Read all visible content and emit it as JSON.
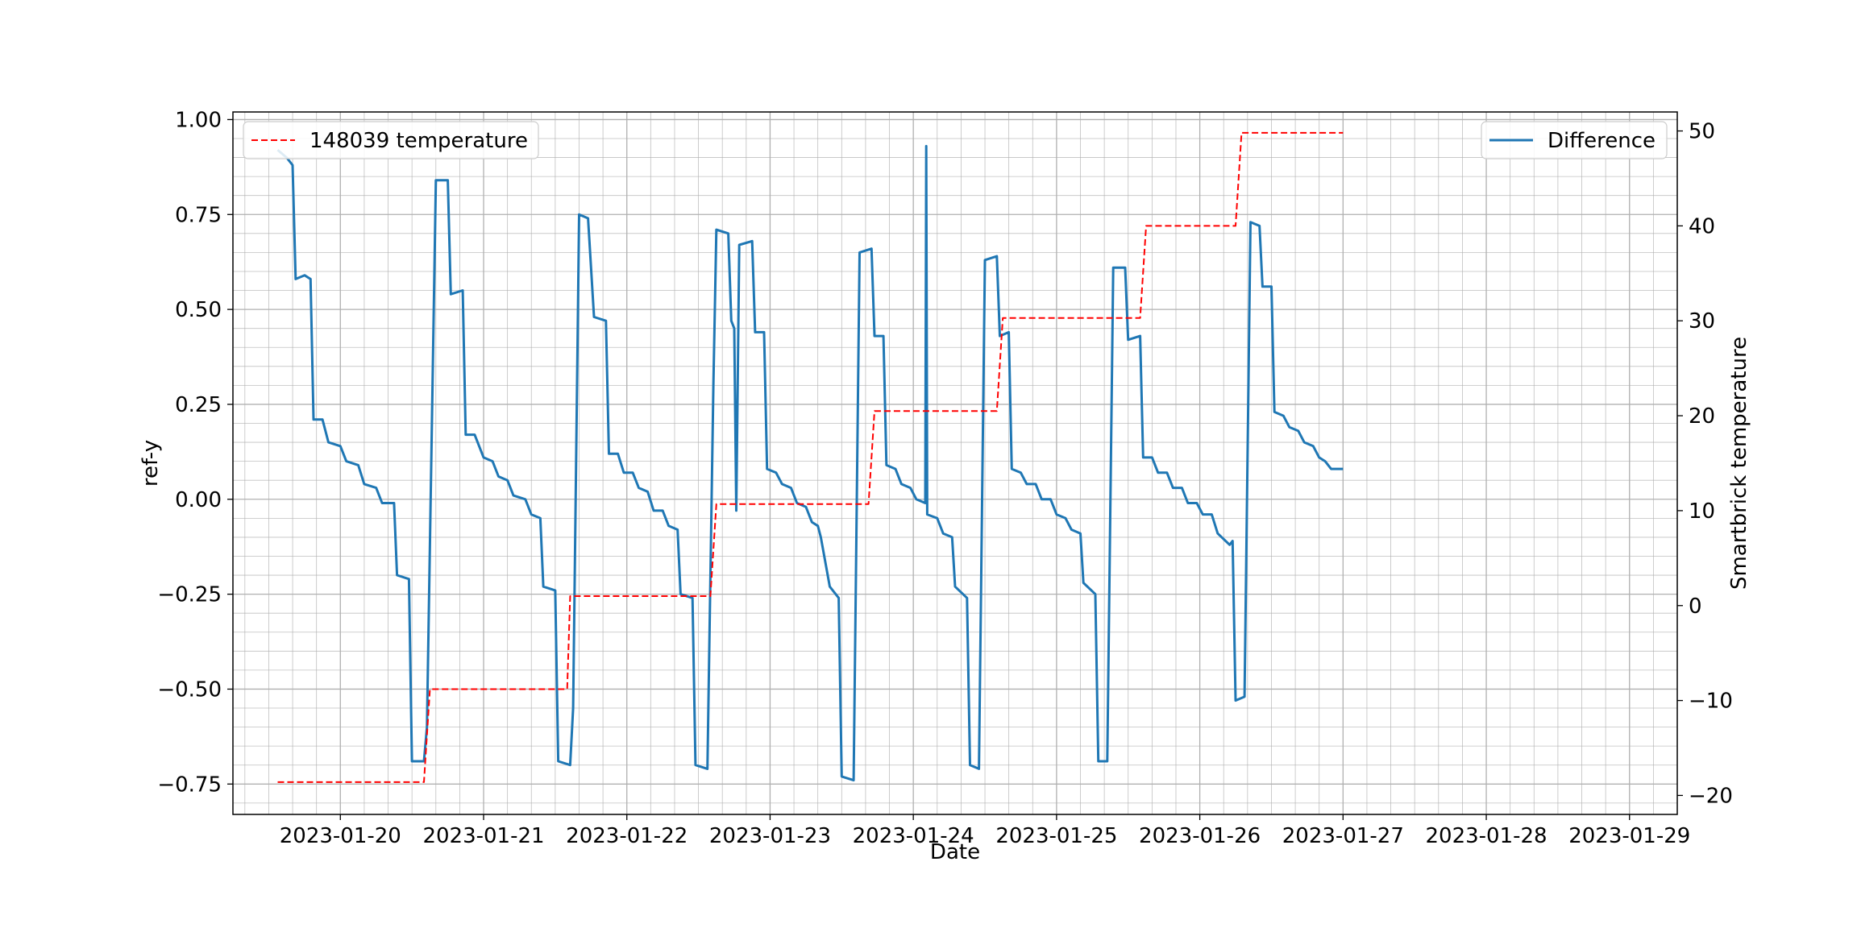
{
  "chart_data": {
    "type": "line",
    "title": "",
    "xlabel": "Date",
    "ylabel_left": "ref-y",
    "ylabel_right": "Smartbrick temperature",
    "grid": true,
    "x_ticks": [
      "2023-01-20",
      "2023-01-21",
      "2023-01-22",
      "2023-01-23",
      "2023-01-24",
      "2023-01-25",
      "2023-01-26",
      "2023-01-27",
      "2023-01-28",
      "2023-01-29"
    ],
    "xlim": [
      "2023-01-19 06:00",
      "2023-01-29 08:00"
    ],
    "ylim_left": [
      -0.83,
      1.02
    ],
    "ylim_right": [
      -22,
      52
    ],
    "y_ticks_left": [
      -0.75,
      -0.5,
      -0.25,
      0.0,
      0.25,
      0.5,
      0.75,
      1.0
    ],
    "y_tick_labels_left": [
      "−0.75",
      "−0.50",
      "−0.25",
      "0.00",
      "0.25",
      "0.50",
      "0.75",
      "1.00"
    ],
    "y_ticks_right": [
      -20,
      -10,
      0,
      10,
      20,
      30,
      40,
      50
    ],
    "y_tick_labels_right": [
      "−20",
      "−10",
      "0",
      "10",
      "20",
      "30",
      "40",
      "50"
    ],
    "legend_left": {
      "placement": "upper-left",
      "label": "148039 temperature"
    },
    "legend_right": {
      "placement": "upper-right",
      "label": "Difference"
    },
    "colors": {
      "difference": "#1f77b4",
      "temperature": "#ff0000",
      "grid": "#b0b0b0"
    },
    "series": [
      {
        "name": "Difference",
        "axis": "left",
        "style": "solid",
        "color": "#1f77b4",
        "points": [
          [
            "2023-01-19 13:30",
            0.92
          ],
          [
            "2023-01-19 15:00",
            0.9
          ],
          [
            "2023-01-19 16:00",
            0.88
          ],
          [
            "2023-01-19 16:30",
            0.58
          ],
          [
            "2023-01-19 18:00",
            0.59
          ],
          [
            "2023-01-19 19:00",
            0.58
          ],
          [
            "2023-01-19 19:30",
            0.21
          ],
          [
            "2023-01-19 21:00",
            0.21
          ],
          [
            "2023-01-19 22:00",
            0.15
          ],
          [
            "2023-01-20 00:00",
            0.14
          ],
          [
            "2023-01-20 01:00",
            0.1
          ],
          [
            "2023-01-20 03:00",
            0.09
          ],
          [
            "2023-01-20 04:00",
            0.04
          ],
          [
            "2023-01-20 06:00",
            0.03
          ],
          [
            "2023-01-20 07:00",
            -0.01
          ],
          [
            "2023-01-20 09:00",
            -0.01
          ],
          [
            "2023-01-20 09:30",
            -0.2
          ],
          [
            "2023-01-20 11:30",
            -0.21
          ],
          [
            "2023-01-20 12:00",
            -0.69
          ],
          [
            "2023-01-20 14:00",
            -0.69
          ],
          [
            "2023-01-20 14:30",
            -0.6
          ],
          [
            "2023-01-20 16:00",
            0.84
          ],
          [
            "2023-01-20 18:00",
            0.84
          ],
          [
            "2023-01-20 18:30",
            0.54
          ],
          [
            "2023-01-20 20:30",
            0.55
          ],
          [
            "2023-01-20 21:00",
            0.17
          ],
          [
            "2023-01-20 22:30",
            0.17
          ],
          [
            "2023-01-21 00:00",
            0.11
          ],
          [
            "2023-01-21 01:30",
            0.1
          ],
          [
            "2023-01-21 02:30",
            0.06
          ],
          [
            "2023-01-21 04:00",
            0.05
          ],
          [
            "2023-01-21 05:00",
            0.01
          ],
          [
            "2023-01-21 07:00",
            0.0
          ],
          [
            "2023-01-21 08:00",
            -0.04
          ],
          [
            "2023-01-21 09:30",
            -0.05
          ],
          [
            "2023-01-21 10:00",
            -0.23
          ],
          [
            "2023-01-21 12:00",
            -0.24
          ],
          [
            "2023-01-21 12:30",
            -0.69
          ],
          [
            "2023-01-21 14:30",
            -0.7
          ],
          [
            "2023-01-21 15:00",
            -0.55
          ],
          [
            "2023-01-21 16:00",
            0.75
          ],
          [
            "2023-01-21 17:30",
            0.74
          ],
          [
            "2023-01-21 18:30",
            0.48
          ],
          [
            "2023-01-21 20:30",
            0.47
          ],
          [
            "2023-01-21 21:00",
            0.12
          ],
          [
            "2023-01-21 22:30",
            0.12
          ],
          [
            "2023-01-21 23:30",
            0.07
          ],
          [
            "2023-01-22 01:00",
            0.07
          ],
          [
            "2023-01-22 02:00",
            0.03
          ],
          [
            "2023-01-22 03:30",
            0.02
          ],
          [
            "2023-01-22 04:30",
            -0.03
          ],
          [
            "2023-01-22 06:00",
            -0.03
          ],
          [
            "2023-01-22 07:00",
            -0.07
          ],
          [
            "2023-01-22 08:30",
            -0.08
          ],
          [
            "2023-01-22 09:00",
            -0.25
          ],
          [
            "2023-01-22 11:00",
            -0.26
          ],
          [
            "2023-01-22 11:30",
            -0.7
          ],
          [
            "2023-01-22 13:30",
            -0.71
          ],
          [
            "2023-01-22 14:30",
            0.3
          ],
          [
            "2023-01-22 15:00",
            0.71
          ],
          [
            "2023-01-22 17:00",
            0.7
          ],
          [
            "2023-01-22 17:30",
            0.47
          ],
          [
            "2023-01-22 18:00",
            0.45
          ],
          [
            "2023-01-22 18:20",
            -0.03
          ],
          [
            "2023-01-22 18:50",
            0.67
          ],
          [
            "2023-01-22 21:00",
            0.68
          ],
          [
            "2023-01-22 21:30",
            0.44
          ],
          [
            "2023-01-22 23:00",
            0.44
          ],
          [
            "2023-01-22 23:30",
            0.08
          ],
          [
            "2023-01-23 01:00",
            0.07
          ],
          [
            "2023-01-23 02:00",
            0.04
          ],
          [
            "2023-01-23 03:30",
            0.03
          ],
          [
            "2023-01-23 04:30",
            -0.01
          ],
          [
            "2023-01-23 06:00",
            -0.02
          ],
          [
            "2023-01-23 07:00",
            -0.06
          ],
          [
            "2023-01-23 08:00",
            -0.07
          ],
          [
            "2023-01-23 08:30",
            -0.1
          ],
          [
            "2023-01-23 10:00",
            -0.23
          ],
          [
            "2023-01-23 11:30",
            -0.26
          ],
          [
            "2023-01-23 12:00",
            -0.73
          ],
          [
            "2023-01-23 14:00",
            -0.74
          ],
          [
            "2023-01-23 15:00",
            0.65
          ],
          [
            "2023-01-23 17:00",
            0.66
          ],
          [
            "2023-01-23 17:30",
            0.43
          ],
          [
            "2023-01-23 19:00",
            0.43
          ],
          [
            "2023-01-23 19:30",
            0.09
          ],
          [
            "2023-01-23 21:00",
            0.08
          ],
          [
            "2023-01-23 22:00",
            0.04
          ],
          [
            "2023-01-23 23:30",
            0.03
          ],
          [
            "2023-01-24 00:30",
            0.0
          ],
          [
            "2023-01-24 02:00",
            -0.01
          ],
          [
            "2023-01-24 02:10",
            0.93
          ],
          [
            "2023-01-24 02:20",
            -0.04
          ],
          [
            "2023-01-24 04:00",
            -0.05
          ],
          [
            "2023-01-24 05:00",
            -0.09
          ],
          [
            "2023-01-24 06:30",
            -0.1
          ],
          [
            "2023-01-24 07:00",
            -0.23
          ],
          [
            "2023-01-24 09:00",
            -0.26
          ],
          [
            "2023-01-24 09:30",
            -0.7
          ],
          [
            "2023-01-24 11:00",
            -0.71
          ],
          [
            "2023-01-24 12:00",
            0.63
          ],
          [
            "2023-01-24 14:00",
            0.64
          ],
          [
            "2023-01-24 14:30",
            0.43
          ],
          [
            "2023-01-24 16:00",
            0.44
          ],
          [
            "2023-01-24 16:30",
            0.08
          ],
          [
            "2023-01-24 18:00",
            0.07
          ],
          [
            "2023-01-24 19:00",
            0.04
          ],
          [
            "2023-01-24 20:30",
            0.04
          ],
          [
            "2023-01-24 21:30",
            0.0
          ],
          [
            "2023-01-24 23:00",
            0.0
          ],
          [
            "2023-01-25 00:00",
            -0.04
          ],
          [
            "2023-01-25 01:30",
            -0.05
          ],
          [
            "2023-01-25 02:30",
            -0.08
          ],
          [
            "2023-01-25 04:00",
            -0.09
          ],
          [
            "2023-01-25 04:30",
            -0.22
          ],
          [
            "2023-01-25 06:30",
            -0.25
          ],
          [
            "2023-01-25 07:00",
            -0.69
          ],
          [
            "2023-01-25 08:30",
            -0.69
          ],
          [
            "2023-01-25 09:30",
            0.61
          ],
          [
            "2023-01-25 11:30",
            0.61
          ],
          [
            "2023-01-25 12:00",
            0.42
          ],
          [
            "2023-01-25 14:00",
            0.43
          ],
          [
            "2023-01-25 14:30",
            0.11
          ],
          [
            "2023-01-25 16:00",
            0.11
          ],
          [
            "2023-01-25 17:00",
            0.07
          ],
          [
            "2023-01-25 18:30",
            0.07
          ],
          [
            "2023-01-25 19:30",
            0.03
          ],
          [
            "2023-01-25 21:00",
            0.03
          ],
          [
            "2023-01-25 22:00",
            -0.01
          ],
          [
            "2023-01-25 23:30",
            -0.01
          ],
          [
            "2023-01-26 00:30",
            -0.04
          ],
          [
            "2023-01-26 02:00",
            -0.04
          ],
          [
            "2023-01-26 03:00",
            -0.09
          ],
          [
            "2023-01-26 05:00",
            -0.12
          ],
          [
            "2023-01-26 05:30",
            -0.11
          ],
          [
            "2023-01-26 06:00",
            -0.53
          ],
          [
            "2023-01-26 07:30",
            -0.52
          ],
          [
            "2023-01-26 08:30",
            0.73
          ],
          [
            "2023-01-26 10:00",
            0.72
          ],
          [
            "2023-01-26 10:30",
            0.56
          ],
          [
            "2023-01-26 12:00",
            0.56
          ],
          [
            "2023-01-26 12:30",
            0.23
          ],
          [
            "2023-01-26 14:00",
            0.22
          ],
          [
            "2023-01-26 15:00",
            0.19
          ],
          [
            "2023-01-26 16:30",
            0.18
          ],
          [
            "2023-01-26 17:30",
            0.15
          ],
          [
            "2023-01-26 19:00",
            0.14
          ],
          [
            "2023-01-26 20:00",
            0.11
          ],
          [
            "2023-01-26 21:00",
            0.1
          ],
          [
            "2023-01-26 22:00",
            0.08
          ],
          [
            "2023-01-27 00:00",
            0.08
          ]
        ]
      },
      {
        "name": "148039 temperature",
        "axis": "right",
        "style": "dashed",
        "color": "#ff0000",
        "points": [
          [
            "2023-01-19 13:30",
            -18.6
          ],
          [
            "2023-01-20 14:00",
            -18.6
          ],
          [
            "2023-01-20 15:00",
            -8.8
          ],
          [
            "2023-01-21 14:00",
            -8.8
          ],
          [
            "2023-01-21 14:30",
            1.0
          ],
          [
            "2023-01-22 14:00",
            1.0
          ],
          [
            "2023-01-22 15:00",
            10.7
          ],
          [
            "2023-01-23 16:30",
            10.7
          ],
          [
            "2023-01-23 17:30",
            20.5
          ],
          [
            "2023-01-24 14:00",
            20.5
          ],
          [
            "2023-01-24 15:00",
            30.3
          ],
          [
            "2023-01-25 14:00",
            30.3
          ],
          [
            "2023-01-25 15:00",
            40.0
          ],
          [
            "2023-01-26 06:00",
            40.0
          ],
          [
            "2023-01-26 07:00",
            49.8
          ],
          [
            "2023-01-27 00:00",
            49.8
          ]
        ]
      }
    ]
  }
}
